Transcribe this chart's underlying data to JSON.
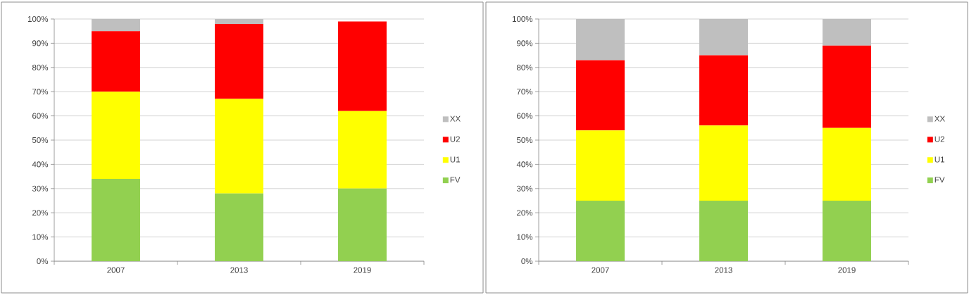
{
  "chart_data": [
    {
      "type": "bar",
      "stacked": true,
      "categories": [
        "2007",
        "2013",
        "2019"
      ],
      "series": [
        {
          "name": "FV",
          "color": "#92d050",
          "values": [
            34,
            28,
            30
          ]
        },
        {
          "name": "U1",
          "color": "#ffff00",
          "values": [
            36,
            39,
            32
          ]
        },
        {
          "name": "U2",
          "color": "#ff0000",
          "values": [
            25,
            31,
            37
          ]
        },
        {
          "name": "XX",
          "color": "#bfbfbf",
          "values": [
            5,
            2,
            null
          ]
        }
      ],
      "ylim": [
        0,
        100
      ],
      "yticks": [
        {
          "value": 0,
          "label": "0%"
        },
        {
          "value": 10,
          "label": "10%"
        },
        {
          "value": 20,
          "label": "20%"
        },
        {
          "value": 30,
          "label": "30%"
        },
        {
          "value": 40,
          "label": "40%"
        },
        {
          "value": 50,
          "label": "50%"
        },
        {
          "value": 60,
          "label": "60%"
        },
        {
          "value": 70,
          "label": "70%"
        },
        {
          "value": 80,
          "label": "80%"
        },
        {
          "value": 90,
          "label": "90%"
        },
        {
          "value": 100,
          "label": "100%"
        }
      ],
      "grid": "y",
      "legend": "right"
    },
    {
      "type": "bar",
      "stacked": true,
      "categories": [
        "2007",
        "2013",
        "2019"
      ],
      "series": [
        {
          "name": "FV",
          "color": "#92d050",
          "values": [
            25,
            25,
            25
          ]
        },
        {
          "name": "U1",
          "color": "#ffff00",
          "values": [
            29,
            31,
            30
          ]
        },
        {
          "name": "U2",
          "color": "#ff0000",
          "values": [
            29,
            29,
            34
          ]
        },
        {
          "name": "XX",
          "color": "#bfbfbf",
          "values": [
            17,
            15,
            11
          ]
        }
      ],
      "ylim": [
        0,
        100
      ],
      "yticks": [
        {
          "value": 0,
          "label": "0%"
        },
        {
          "value": 10,
          "label": "10%"
        },
        {
          "value": 20,
          "label": "20%"
        },
        {
          "value": 30,
          "label": "30%"
        },
        {
          "value": 40,
          "label": "40%"
        },
        {
          "value": 50,
          "label": "50%"
        },
        {
          "value": 60,
          "label": "60%"
        },
        {
          "value": 70,
          "label": "70%"
        },
        {
          "value": 80,
          "label": "80%"
        },
        {
          "value": 90,
          "label": "90%"
        },
        {
          "value": 100,
          "label": "100%"
        }
      ],
      "grid": "y",
      "legend": "right"
    }
  ]
}
